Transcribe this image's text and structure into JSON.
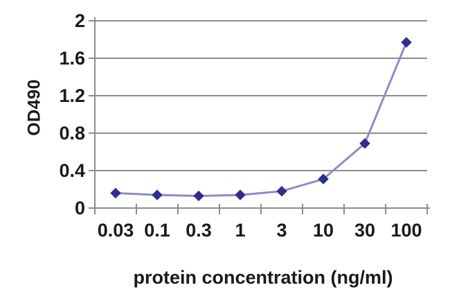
{
  "figure": {
    "background": "#ffffff"
  },
  "chart_data": {
    "type": "line",
    "title": "",
    "xlabel": "protein concentration (ng/ml)",
    "ylabel": "OD490",
    "categories": [
      "0.03",
      "0.1",
      "0.3",
      "1",
      "3",
      "10",
      "30",
      "100"
    ],
    "series": [
      {
        "name": "OD490",
        "values": [
          0.16,
          0.14,
          0.13,
          0.14,
          0.18,
          0.31,
          0.69,
          1.77
        ]
      }
    ],
    "x_scale": "categorical-log-spaced",
    "ylim": [
      0,
      2
    ],
    "y_ticks": [
      0,
      0.4,
      0.8,
      1.2,
      1.6,
      2
    ],
    "y_tick_labels": [
      "0",
      "0.4",
      "0.8",
      "1.2",
      "1.6",
      "2"
    ],
    "grid": "horizontal",
    "legend": "none",
    "marker": "diamond",
    "colors": {
      "line": "#8c8cc8",
      "marker": "#2e2e8f",
      "grid": "#8c8c8c",
      "axis": "#8c8c8c",
      "text": "#1a1a1a",
      "background": "#ffffff"
    }
  }
}
